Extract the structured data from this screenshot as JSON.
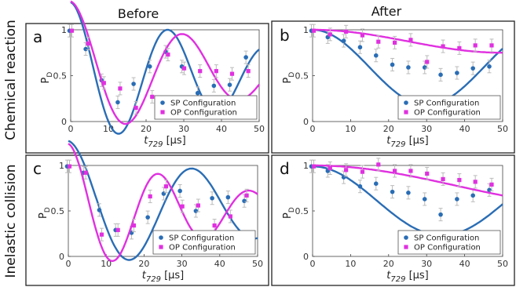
{
  "figure": {
    "col_titles": [
      "Before",
      "After"
    ],
    "row_titles": [
      "Chemical reaction",
      "Inelastic collision"
    ]
  },
  "chart_data": [
    {
      "type": "scatter",
      "panel_label": "a",
      "xlabel": "t729 [µs]",
      "ylabel": "PD",
      "xlim": [
        0,
        50
      ],
      "ylim": [
        0,
        1
      ],
      "xticks": [
        "0",
        "10",
        "20",
        "30",
        "40",
        "50"
      ],
      "yticks": [
        "0",
        "0.5",
        "1"
      ],
      "legend": "bottom-right",
      "series": [
        {
          "name": "SP Configuration",
          "color": "#2a6db5",
          "marker": "circle",
          "points": [
            [
              0,
              0.99
            ],
            [
              4.3,
              0.79
            ],
            [
              8.5,
              0.45
            ],
            [
              12.8,
              0.21
            ],
            [
              17,
              0.41
            ],
            [
              21.3,
              0.6
            ],
            [
              25.5,
              0.76
            ],
            [
              29.8,
              0.6
            ],
            [
              34,
              0.31
            ],
            [
              38.3,
              0.39
            ],
            [
              42.5,
              0.4
            ],
            [
              46.8,
              0.7
            ]
          ],
          "fit": {
            "amp": 0.8,
            "tau": 55,
            "period": 26,
            "offset": 0.5
          }
        },
        {
          "name": "OP Configuration",
          "color": "#e030e0",
          "marker": "square",
          "points": [
            [
              0,
              0.99
            ],
            [
              4.3,
              0.85
            ],
            [
              8.5,
              0.42
            ],
            [
              12.8,
              0.36
            ],
            [
              17,
              0.15
            ],
            [
              21.3,
              0.27
            ],
            [
              25.5,
              0.73
            ],
            [
              29.8,
              0.58
            ],
            [
              34,
              0.55
            ],
            [
              38.3,
              0.55
            ],
            [
              42.5,
              0.52
            ],
            [
              46.8,
              0.55
            ]
          ],
          "fit": {
            "amp": 0.77,
            "tau": 48,
            "period": 30,
            "offset": 0.54
          }
        }
      ]
    },
    {
      "type": "scatter",
      "panel_label": "b",
      "xlabel": "t729 [µs]",
      "ylabel": "PD",
      "xlim": [
        0,
        50
      ],
      "ylim": [
        0,
        1
      ],
      "xticks": [
        "0",
        "10",
        "20",
        "30",
        "40",
        "50"
      ],
      "yticks": [
        "0",
        "0.5",
        "1"
      ],
      "legend": "bottom-right",
      "series": [
        {
          "name": "SP Configuration",
          "color": "#2a6db5",
          "marker": "circle",
          "points": [
            [
              0,
              0.99
            ],
            [
              4.3,
              0.92
            ],
            [
              8.5,
              0.88
            ],
            [
              12.8,
              0.81
            ],
            [
              17,
              0.72
            ],
            [
              21.3,
              0.62
            ],
            [
              25.5,
              0.59
            ],
            [
              29.8,
              0.59
            ],
            [
              34,
              0.51
            ],
            [
              38.3,
              0.53
            ],
            [
              42.5,
              0.58
            ],
            [
              46.8,
              0.6
            ]
          ],
          "fit": {
            "amp": 0.41,
            "tau": 1000000000.0,
            "period": 60,
            "offset": 0.59
          }
        },
        {
          "name": "OP Configuration",
          "color": "#e030e0",
          "marker": "square",
          "points": [
            [
              0,
              0.99
            ],
            [
              4.3,
              0.95
            ],
            [
              8.5,
              0.98
            ],
            [
              12.8,
              0.94
            ],
            [
              17,
              0.87
            ],
            [
              21.3,
              0.86
            ],
            [
              25.5,
              0.89
            ],
            [
              29.8,
              0.65
            ],
            [
              34,
              0.82
            ],
            [
              38.3,
              0.8
            ],
            [
              42.5,
              0.83
            ],
            [
              46.8,
              0.83
            ]
          ],
          "fit": {
            "amp": 0.125,
            "tau": 1000000000.0,
            "period": 100,
            "offset": 0.875
          }
        }
      ]
    },
    {
      "type": "scatter",
      "panel_label": "c",
      "xlabel": "t729 [µs]",
      "ylabel": "PD",
      "xlim": [
        0,
        50
      ],
      "ylim": [
        0,
        1
      ],
      "xticks": [
        "0",
        "10",
        "20",
        "30",
        "40",
        "50"
      ],
      "yticks": [
        "0",
        "0.5",
        "1"
      ],
      "legend": "bottom-right",
      "series": [
        {
          "name": "SP Configuration",
          "color": "#2a6db5",
          "marker": "circle",
          "points": [
            [
              0,
              0.99
            ],
            [
              4.3,
              0.92
            ],
            [
              8.5,
              0.51
            ],
            [
              12.8,
              0.29
            ],
            [
              17,
              0.26
            ],
            [
              21.3,
              0.43
            ],
            [
              25.5,
              0.69
            ],
            [
              29.8,
              0.72
            ],
            [
              34,
              0.5
            ],
            [
              38.3,
              0.64
            ],
            [
              42.5,
              0.65
            ],
            [
              46.8,
              0.61
            ]
          ],
          "fit": {
            "amp": 0.74,
            "tau": 62,
            "period": 33,
            "offset": 0.53
          }
        },
        {
          "name": "OP Configuration",
          "color": "#e030e0",
          "marker": "square",
          "points": [
            [
              0,
              0.99
            ],
            [
              4.3,
              0.92
            ],
            [
              8.5,
              0.24
            ],
            [
              12.8,
              0.29
            ],
            [
              17,
              0.34
            ],
            [
              21.3,
              0.66
            ],
            [
              25.5,
              0.77
            ],
            [
              29.8,
              0.55
            ],
            [
              34,
              0.56
            ],
            [
              38.3,
              0.34
            ],
            [
              42.5,
              0.44
            ],
            [
              46.8,
              0.67
            ]
          ],
          "fit": {
            "amp": 0.74,
            "tau": 40,
            "period": 24,
            "offset": 0.5
          }
        }
      ]
    },
    {
      "type": "scatter",
      "panel_label": "d",
      "xlabel": "t729 [µs]",
      "ylabel": "PD",
      "xlim": [
        0,
        50
      ],
      "ylim": [
        0,
        1
      ],
      "xticks": [
        "0",
        "10",
        "20",
        "30",
        "40",
        "50"
      ],
      "yticks": [
        "0",
        "0.5",
        "1"
      ],
      "legend": "bottom-right",
      "series": [
        {
          "name": "SP Configuration",
          "color": "#2a6db5",
          "marker": "circle",
          "points": [
            [
              0,
              0.99
            ],
            [
              4.3,
              0.94
            ],
            [
              8.5,
              0.87
            ],
            [
              12.8,
              0.77
            ],
            [
              17,
              0.8
            ],
            [
              21.3,
              0.71
            ],
            [
              25.5,
              0.7
            ],
            [
              29.8,
              0.63
            ],
            [
              34,
              0.46
            ],
            [
              38.3,
              0.63
            ],
            [
              42.5,
              0.67
            ],
            [
              46.8,
              0.73
            ]
          ],
          "fit": {
            "amp": 0.38,
            "tau": 1000000000.0,
            "period": 68,
            "offset": 0.61
          }
        },
        {
          "name": "OP Configuration",
          "color": "#e030e0",
          "marker": "square",
          "points": [
            [
              0,
              0.99
            ],
            [
              4.3,
              0.97
            ],
            [
              8.5,
              0.95
            ],
            [
              12.8,
              0.93
            ],
            [
              17,
              1.01
            ],
            [
              21.3,
              0.94
            ],
            [
              25.5,
              0.94
            ],
            [
              29.8,
              0.91
            ],
            [
              34,
              0.85
            ],
            [
              38.3,
              0.84
            ],
            [
              42.5,
              0.82
            ],
            [
              46.8,
              0.79
            ]
          ],
          "fit": {
            "amp": 0.22,
            "tau": 1000000000.0,
            "period": 150,
            "offset": 0.78
          }
        }
      ]
    }
  ]
}
